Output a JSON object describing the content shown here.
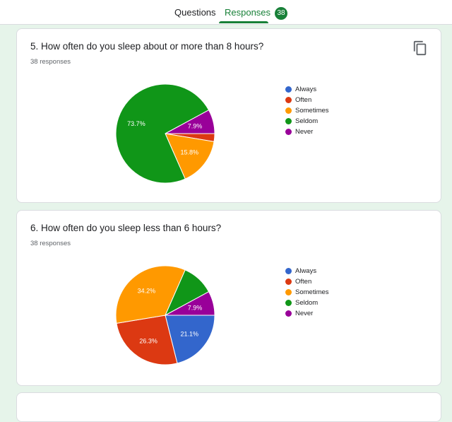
{
  "tabs": {
    "questions_label": "Questions",
    "responses_label": "Responses",
    "responses_count": "38"
  },
  "colors": {
    "Always": "#3366cc",
    "Often": "#dc3912",
    "Sometimes": "#ff9900",
    "Seldom": "#109618",
    "Never": "#990099"
  },
  "cards": [
    {
      "title": "5. How often do you sleep about or more than 8 hours?",
      "responses": "38 responses",
      "legend": [
        "Always",
        "Often",
        "Sometimes",
        "Seldom",
        "Never"
      ],
      "chart_data": {
        "type": "pie",
        "categories": [
          "Always",
          "Often",
          "Sometimes",
          "Seldom",
          "Never"
        ],
        "values": [
          0,
          2.6,
          15.8,
          73.7,
          7.9
        ],
        "labels": [
          "",
          "",
          "15.8%",
          "73.7%",
          "7.9%"
        ]
      }
    },
    {
      "title": "6. How often do you sleep less than 6 hours?",
      "responses": "38 responses",
      "legend": [
        "Always",
        "Often",
        "Sometimes",
        "Seldom",
        "Never"
      ],
      "chart_data": {
        "type": "pie",
        "categories": [
          "Always",
          "Often",
          "Sometimes",
          "Seldom",
          "Never"
        ],
        "values": [
          21.1,
          26.3,
          34.2,
          10.5,
          7.9
        ],
        "labels": [
          "21.1%",
          "26.3%",
          "34.2%",
          "",
          "7.9%"
        ]
      }
    }
  ]
}
